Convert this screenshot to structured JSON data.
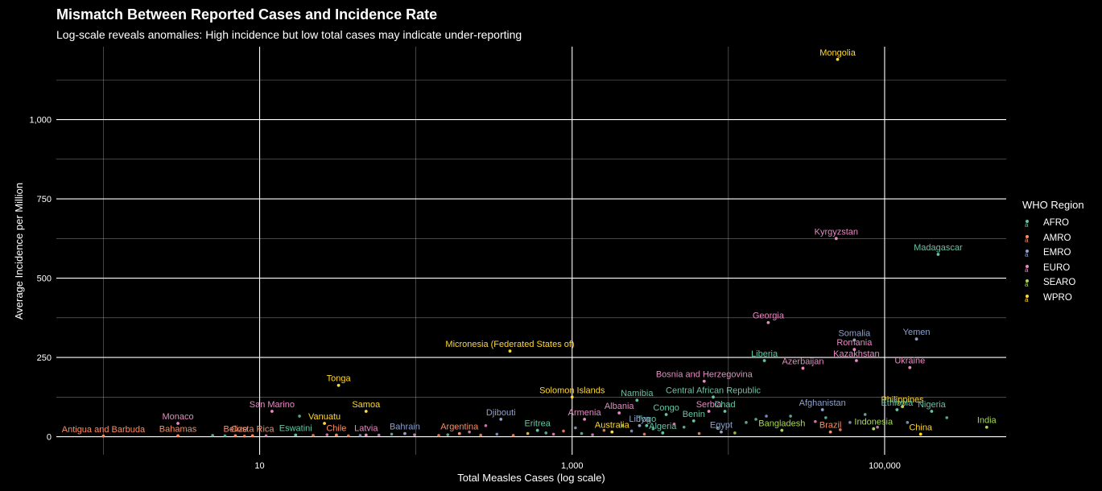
{
  "chart_data": {
    "type": "scatter",
    "title": "Mismatch Between Reported Cases and Incidence Rate",
    "subtitle": "Log-scale reveals anomalies: High incidence but low total cases may indicate under-reporting",
    "xlabel": "Total Measles Cases (log scale)",
    "ylabel": "Average Incidence per Million",
    "x_scale": "log10",
    "xlim": [
      0.5,
      600000
    ],
    "ylim": [
      -57,
      1230
    ],
    "x_ticks": [
      10,
      1000,
      100000
    ],
    "x_tick_labels": [
      "10",
      "1,000",
      "100,000"
    ],
    "y_ticks": [
      0,
      250,
      500,
      750,
      1000
    ],
    "y_tick_labels": [
      "0",
      "250",
      "500",
      "750",
      "1,000"
    ],
    "grid": true,
    "legend": {
      "title": "WHO Region",
      "position": "right",
      "entries": [
        {
          "name": "AFRO",
          "color": "#66c2a5"
        },
        {
          "name": "AMRO",
          "color": "#fc8d62"
        },
        {
          "name": "EMRO",
          "color": "#8da0cb"
        },
        {
          "name": "EURO",
          "color": "#e78ac3"
        },
        {
          "name": "SEARO",
          "color": "#a6d854"
        },
        {
          "name": "WPRO",
          "color": "#ffd92f"
        }
      ]
    },
    "points": [
      {
        "label": "Mongolia",
        "region": "WPRO",
        "x": 50000,
        "y": 1190
      },
      {
        "label": "Kyrgyzstan",
        "region": "EURO",
        "x": 49000,
        "y": 625
      },
      {
        "label": "Madagascar",
        "region": "AFRO",
        "x": 220000,
        "y": 575
      },
      {
        "label": "Georgia",
        "region": "EURO",
        "x": 18000,
        "y": 360
      },
      {
        "label": "Somalia",
        "region": "EMRO",
        "x": 64000,
        "y": 305
      },
      {
        "label": "Yemen",
        "region": "EMRO",
        "x": 160000,
        "y": 308
      },
      {
        "label": "Romania",
        "region": "EURO",
        "x": 64000,
        "y": 275
      },
      {
        "label": "Liberia",
        "region": "AFRO",
        "x": 17000,
        "y": 240
      },
      {
        "label": "Kazakhstan",
        "region": "EURO",
        "x": 66000,
        "y": 240
      },
      {
        "label": "Azerbaijan",
        "region": "EURO",
        "x": 30000,
        "y": 216
      },
      {
        "label": "Ukraine",
        "region": "EURO",
        "x": 145000,
        "y": 218
      },
      {
        "label": "Micronesia (Federated States of)",
        "region": "WPRO",
        "x": 400,
        "y": 270
      },
      {
        "label": "Bosnia and Herzegovina",
        "region": "EURO",
        "x": 7000,
        "y": 175
      },
      {
        "label": "Tonga",
        "region": "WPRO",
        "x": 32,
        "y": 162
      },
      {
        "label": "Central African Republic",
        "region": "AFRO",
        "x": 8000,
        "y": 125
      },
      {
        "label": "Solomon Islands",
        "region": "WPRO",
        "x": 1000,
        "y": 125
      },
      {
        "label": "Philippines",
        "region": "WPRO",
        "x": 130000,
        "y": 95
      },
      {
        "label": "Afghanistan",
        "region": "EMRO",
        "x": 40000,
        "y": 85
      },
      {
        "label": "Nigeria",
        "region": "AFRO",
        "x": 200000,
        "y": 80
      },
      {
        "label": "Namibia",
        "region": "AFRO",
        "x": 2600,
        "y": 115
      },
      {
        "label": "San Marino",
        "region": "EURO",
        "x": 12,
        "y": 80
      },
      {
        "label": "Samoa",
        "region": "WPRO",
        "x": 48,
        "y": 80
      },
      {
        "label": "Ethiopia",
        "region": "AFRO",
        "x": 120000,
        "y": 85
      },
      {
        "label": "Serbia",
        "region": "EURO",
        "x": 7500,
        "y": 80
      },
      {
        "label": "Chad",
        "region": "AFRO",
        "x": 9500,
        "y": 80
      },
      {
        "label": "Congo",
        "region": "AFRO",
        "x": 4000,
        "y": 70
      },
      {
        "label": "Albania",
        "region": "EURO",
        "x": 2000,
        "y": 75
      },
      {
        "label": "Djibouti",
        "region": "EMRO",
        "x": 350,
        "y": 55
      },
      {
        "label": "Monaco",
        "region": "EURO",
        "x": 3,
        "y": 42
      },
      {
        "label": "Benin",
        "region": "AFRO",
        "x": 6000,
        "y": 50
      },
      {
        "label": "Armenia",
        "region": "EURO",
        "x": 1200,
        "y": 55
      },
      {
        "label": "Vanuatu",
        "region": "WPRO",
        "x": 26,
        "y": 42
      },
      {
        "label": "Togo",
        "region": "AFRO",
        "x": 3000,
        "y": 35
      },
      {
        "label": "Libya",
        "region": "EMRO",
        "x": 2700,
        "y": 35
      },
      {
        "label": "Indonesia",
        "region": "SEARO",
        "x": 85000,
        "y": 25
      },
      {
        "label": "India",
        "region": "SEARO",
        "x": 450000,
        "y": 30
      },
      {
        "label": "Eritrea",
        "region": "AFRO",
        "x": 600,
        "y": 20
      },
      {
        "label": "Brazil",
        "region": "AMRO",
        "x": 45000,
        "y": 15
      },
      {
        "label": "China",
        "region": "WPRO",
        "x": 170000,
        "y": 8
      },
      {
        "label": "Bangladesh",
        "region": "SEARO",
        "x": 22000,
        "y": 20
      },
      {
        "label": "Egypt",
        "region": "EMRO",
        "x": 9000,
        "y": 15
      },
      {
        "label": "Algeria",
        "region": "AFRO",
        "x": 3800,
        "y": 12
      },
      {
        "label": "Australia",
        "region": "WPRO",
        "x": 1800,
        "y": 15
      },
      {
        "label": "Argentina",
        "region": "AMRO",
        "x": 190,
        "y": 10
      },
      {
        "label": "Bahrain",
        "region": "EMRO",
        "x": 85,
        "y": 10
      },
      {
        "label": "Latvia",
        "region": "EURO",
        "x": 48,
        "y": 5
      },
      {
        "label": "Chile",
        "region": "AMRO",
        "x": 31,
        "y": 5
      },
      {
        "label": "Eswatini",
        "region": "AFRO",
        "x": 17,
        "y": 5
      },
      {
        "label": "Costa Rica",
        "region": "AMRO",
        "x": 9,
        "y": 3
      },
      {
        "label": "Belize",
        "region": "AMRO",
        "x": 7,
        "y": 3
      },
      {
        "label": "Bahamas",
        "region": "AMRO",
        "x": 3,
        "y": 3
      },
      {
        "label": "Antigua and Barbuda",
        "region": "AMRO",
        "x": 1,
        "y": 2
      }
    ],
    "unlabeled_points": [
      {
        "region": "AFRO",
        "x": 5,
        "y": 4
      },
      {
        "region": "AFRO",
        "x": 6,
        "y": 3
      },
      {
        "region": "AMRO",
        "x": 8,
        "y": 2
      },
      {
        "region": "EURO",
        "x": 11,
        "y": 3
      },
      {
        "region": "AFRO",
        "x": 18,
        "y": 65
      },
      {
        "region": "AMRO",
        "x": 22,
        "y": 4
      },
      {
        "region": "EURO",
        "x": 27,
        "y": 6
      },
      {
        "region": "AMRO",
        "x": 37,
        "y": 3
      },
      {
        "region": "EMRO",
        "x": 44,
        "y": 4
      },
      {
        "region": "EURO",
        "x": 58,
        "y": 5
      },
      {
        "region": "AFRO",
        "x": 70,
        "y": 8
      },
      {
        "region": "EURO",
        "x": 98,
        "y": 6
      },
      {
        "region": "AMRO",
        "x": 140,
        "y": 4
      },
      {
        "region": "AFRO",
        "x": 160,
        "y": 6
      },
      {
        "region": "EURO",
        "x": 220,
        "y": 15
      },
      {
        "region": "AMRO",
        "x": 260,
        "y": 5
      },
      {
        "region": "EURO",
        "x": 280,
        "y": 35
      },
      {
        "region": "EMRO",
        "x": 330,
        "y": 8
      },
      {
        "region": "AMRO",
        "x": 420,
        "y": 4
      },
      {
        "region": "WPRO",
        "x": 520,
        "y": 10
      },
      {
        "region": "AFRO",
        "x": 680,
        "y": 12
      },
      {
        "region": "EURO",
        "x": 760,
        "y": 8
      },
      {
        "region": "AMRO",
        "x": 880,
        "y": 18
      },
      {
        "region": "EMRO",
        "x": 1050,
        "y": 28
      },
      {
        "region": "AFRO",
        "x": 1150,
        "y": 10
      },
      {
        "region": "EURO",
        "x": 1350,
        "y": 6
      },
      {
        "region": "AMRO",
        "x": 1600,
        "y": 20
      },
      {
        "region": "AFRO",
        "x": 2100,
        "y": 35
      },
      {
        "region": "EMRO",
        "x": 2400,
        "y": 18
      },
      {
        "region": "AMRO",
        "x": 2900,
        "y": 8
      },
      {
        "region": "AFRO",
        "x": 3300,
        "y": 25
      },
      {
        "region": "EURO",
        "x": 4500,
        "y": 40
      },
      {
        "region": "AFRO",
        "x": 5200,
        "y": 30
      },
      {
        "region": "AMRO",
        "x": 6500,
        "y": 10
      },
      {
        "region": "AFRO",
        "x": 8500,
        "y": 28
      },
      {
        "region": "SEARO",
        "x": 11000,
        "y": 12
      },
      {
        "region": "AFRO",
        "x": 13000,
        "y": 45
      },
      {
        "region": "AFRO",
        "x": 15000,
        "y": 55
      },
      {
        "region": "EMRO",
        "x": 17500,
        "y": 65
      },
      {
        "region": "AFRO",
        "x": 25000,
        "y": 65
      },
      {
        "region": "EURO",
        "x": 36000,
        "y": 48
      },
      {
        "region": "AFRO",
        "x": 42000,
        "y": 60
      },
      {
        "region": "AMRO",
        "x": 52000,
        "y": 22
      },
      {
        "region": "EMRO",
        "x": 60000,
        "y": 45
      },
      {
        "region": "AFRO",
        "x": 75000,
        "y": 70
      },
      {
        "region": "EURO",
        "x": 90000,
        "y": 30
      },
      {
        "region": "EMRO",
        "x": 140000,
        "y": 45
      },
      {
        "region": "AFRO",
        "x": 250000,
        "y": 60
      }
    ]
  }
}
